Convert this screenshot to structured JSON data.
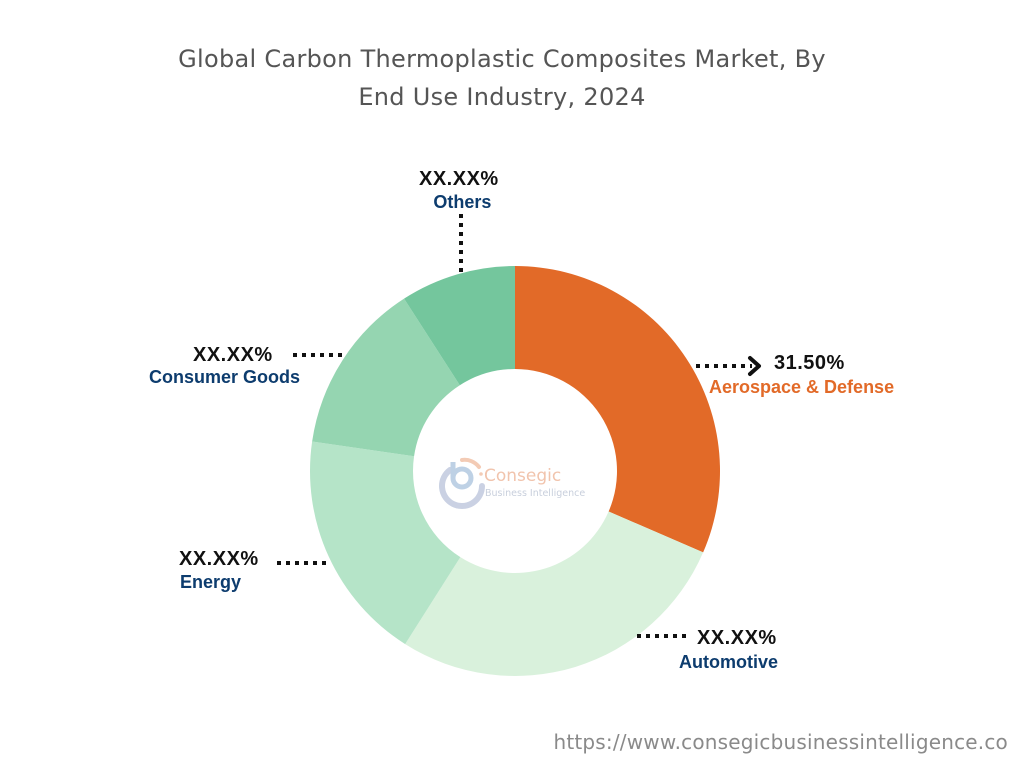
{
  "title": {
    "line1": "Global Carbon Thermoplastic Composites Market, By",
    "line2": "End Use Industry, 2024"
  },
  "chart_data": {
    "type": "pie",
    "variant": "donut",
    "title": "Global Carbon Thermoplastic Composites Market, By End Use Industry, 2024",
    "categories": [
      "Aerospace & Defense",
      "Automotive",
      "Energy",
      "Consumer Goods",
      "Others"
    ],
    "labels": [
      "31.50%",
      "XX.XX%",
      "XX.XX%",
      "XX.XX%",
      "XX.XX%"
    ],
    "values": [
      31.5,
      27.5,
      18.3,
      13.6,
      9.1
    ],
    "values_note": "Only Aerospace & Defense (31.50%) is labeled; other shares are masked as XX.XX% and estimated from slice angles.",
    "colors": [
      "#e26a28",
      "#d9f1dc",
      "#b5e4c8",
      "#95d5b1",
      "#74c69d"
    ],
    "start_angle": "12 o'clock, clockwise",
    "legend": "callout labels"
  },
  "labels": {
    "aerospace": {
      "pct": "31.50%",
      "name": "Aerospace & Defense"
    },
    "automotive": {
      "pct": "XX.XX%",
      "name": "Automotive"
    },
    "energy": {
      "pct": "XX.XX%",
      "name": "Energy"
    },
    "consumer_goods": {
      "pct": "XX.XX%",
      "name": "Consumer Goods"
    },
    "others": {
      "pct": "XX.XX%",
      "name": "Others"
    }
  },
  "logo": {
    "name": "Consegic",
    "tagline": "Business Intelligence"
  },
  "footer": {
    "url": "https://www.consegicbusinessintelligence.co"
  }
}
